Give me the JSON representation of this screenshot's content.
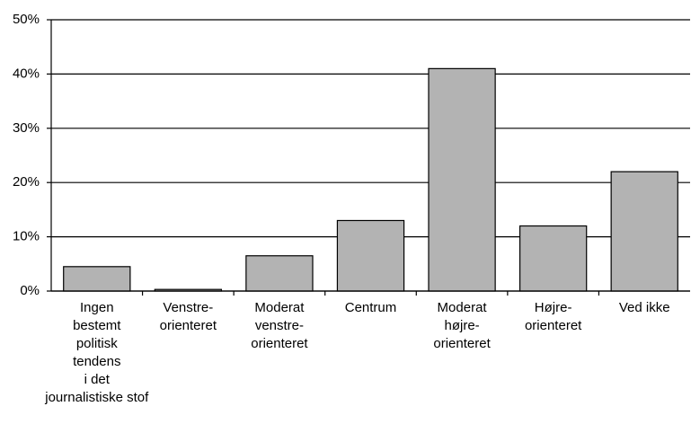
{
  "chart_data": {
    "type": "bar",
    "categories": [
      "Ingen\nbestemt\npolitisk\ntendens\ni det\njournalistiske stof",
      "Venstre-\norienteret",
      "Moderat\nvenstre-\norienteret",
      "Centrum",
      "Moderat\nhøjre-\norienteret",
      "Højre-\norienteret",
      "Ved ikke"
    ],
    "values": [
      4.5,
      0.3,
      6.5,
      13,
      41,
      12,
      22
    ],
    "color": "#b3b3b3",
    "ylim": [
      0,
      50
    ],
    "yticks": [
      {
        "value": 0,
        "label": "0%"
      },
      {
        "value": 10,
        "label": "10%"
      },
      {
        "value": 20,
        "label": "20%"
      },
      {
        "value": 30,
        "label": "30%"
      },
      {
        "value": 40,
        "label": "40%"
      },
      {
        "value": 50,
        "label": "50%"
      }
    ],
    "grid": true
  }
}
